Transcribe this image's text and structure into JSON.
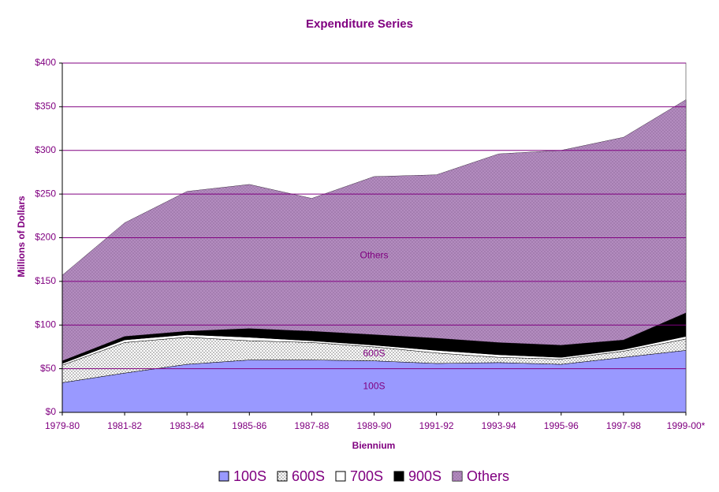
{
  "chart_data": {
    "type": "stacked_area",
    "title": "Expenditure Series",
    "x_label": "Biennium",
    "y_label": "Millions of Dollars",
    "categories": [
      "1979-80",
      "1981-82",
      "1983-84",
      "1985-86",
      "1987-88",
      "1989-90",
      "1991-92",
      "1993-94",
      "1995-96",
      "1997-98",
      "1999-00*"
    ],
    "series": [
      {
        "name": "100S",
        "color": "#9999ff",
        "values": [
          34,
          45,
          55,
          60,
          60,
          59,
          56,
          57,
          55,
          63,
          71
        ]
      },
      {
        "name": "600S",
        "color": "#ffffff",
        "pattern": "dots",
        "values": [
          20,
          35,
          31,
          22,
          20,
          16,
          12,
          6,
          6,
          7,
          13
        ]
      },
      {
        "name": "700S",
        "color": "#ffffff",
        "values": [
          2,
          3,
          3,
          4,
          2,
          2,
          3,
          3,
          2,
          2,
          3
        ]
      },
      {
        "name": "900S",
        "color": "#000000",
        "values": [
          3,
          4,
          4,
          10,
          11,
          12,
          14,
          14,
          14,
          11,
          27
        ]
      },
      {
        "name": "Others",
        "color": "#9966aa",
        "pattern": "dots",
        "values": [
          98,
          130,
          160,
          165,
          152,
          181,
          187,
          216,
          223,
          232,
          244
        ]
      }
    ],
    "ylim": [
      0,
      400
    ],
    "yticks": [
      {
        "value": 0,
        "label": "$0"
      },
      {
        "value": 50,
        "label": "$50"
      },
      {
        "value": 100,
        "label": "$100"
      },
      {
        "value": 150,
        "label": "$150"
      },
      {
        "value": 200,
        "label": "$200"
      },
      {
        "value": 250,
        "label": "$250"
      },
      {
        "value": 300,
        "label": "$300"
      },
      {
        "value": 350,
        "label": "$350"
      },
      {
        "value": 400,
        "label": "$400"
      }
    ],
    "grid": true,
    "grid_color": "#800080",
    "legend": "bottom"
  }
}
